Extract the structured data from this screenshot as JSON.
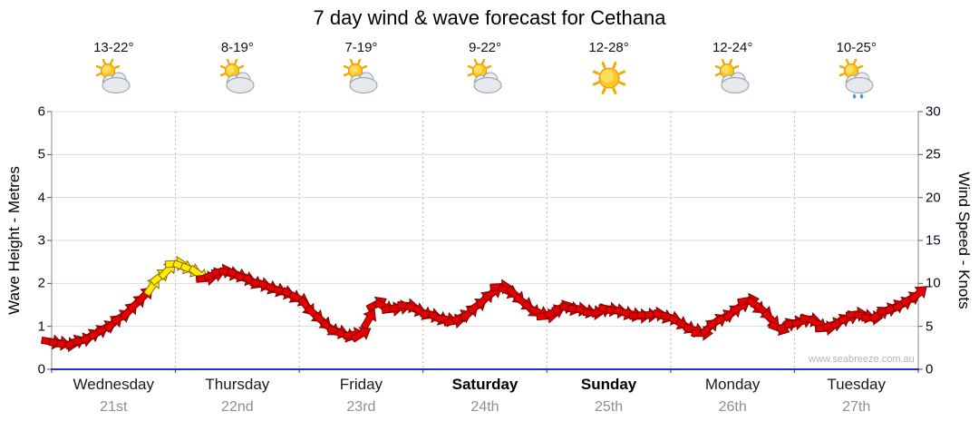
{
  "title": "7 day wind & wave forecast for Cethana",
  "watermark": "www.seabreeze.com.au",
  "axes": {
    "left_label": "Wave Height - Metres",
    "right_label": "Wind Speed - Knots",
    "left_ticks": [
      0,
      1,
      2,
      3,
      4,
      5,
      6
    ],
    "right_ticks": [
      0,
      5,
      10,
      15,
      20,
      25,
      30
    ],
    "left_max": 6,
    "right_max": 30
  },
  "days": [
    {
      "name": "Wednesday",
      "date": "21st",
      "temp": "13-22°",
      "icon": "sun-cloud",
      "bold": false
    },
    {
      "name": "Thursday",
      "date": "22nd",
      "temp": "8-19°",
      "icon": "sun-cloud",
      "bold": false
    },
    {
      "name": "Friday",
      "date": "23rd",
      "temp": "7-19°",
      "icon": "sun-cloud",
      "bold": false
    },
    {
      "name": "Saturday",
      "date": "24th",
      "temp": "9-22°",
      "icon": "sun-cloud",
      "bold": true
    },
    {
      "name": "Sunday",
      "date": "25th",
      "temp": "12-28°",
      "icon": "sun",
      "bold": true
    },
    {
      "name": "Monday",
      "date": "26th",
      "temp": "12-24°",
      "icon": "sun-cloud",
      "bold": false
    },
    {
      "name": "Tuesday",
      "date": "27th",
      "temp": "10-25°",
      "icon": "sun-cloud-rain",
      "bold": false
    }
  ],
  "chart_data": {
    "type": "line",
    "subtype": "wind-arrow-series",
    "title": "7 day wind & wave forecast for Cethana",
    "x_unit": "days (0 = start of Wednesday 21st, 7 = end of Tuesday 27th)",
    "y_unit": "knots",
    "ylim_right_knots": [
      0,
      30
    ],
    "ylim_left_metres": [
      0,
      6
    ],
    "grid": true,
    "point_format": "[time_days, wind_knots, strong_flag(1=yellow_arrow)]",
    "colors": {
      "arrow": "#e60000",
      "arrow_outline": "#7a0000",
      "arrow_strong": "#ffee00",
      "arrow_strong_outline": "#8a6a00",
      "bottom_axis": "#2233bb",
      "gridline": "#dcdcdc",
      "day_divider": "#b8b8b8"
    },
    "points": [
      [
        0.0,
        3.2
      ],
      [
        0.125,
        2.9
      ],
      [
        0.25,
        3.4
      ],
      [
        0.375,
        4.3
      ],
      [
        0.5,
        5.4
      ],
      [
        0.625,
        6.8
      ],
      [
        0.75,
        8.6
      ],
      [
        0.875,
        10.8,
        1
      ],
      [
        1.0,
        12.3,
        1
      ],
      [
        1.125,
        11.6,
        1
      ],
      [
        1.25,
        10.6
      ],
      [
        1.375,
        11.4
      ],
      [
        1.5,
        11.0
      ],
      [
        1.625,
        10.2
      ],
      [
        1.75,
        9.6
      ],
      [
        1.875,
        9.0
      ],
      [
        2.0,
        8.2
      ],
      [
        2.125,
        6.4
      ],
      [
        2.25,
        4.8
      ],
      [
        2.375,
        4.0
      ],
      [
        2.5,
        4.1
      ],
      [
        2.625,
        7.6
      ],
      [
        2.75,
        7.0
      ],
      [
        2.875,
        7.4
      ],
      [
        3.0,
        6.6
      ],
      [
        3.125,
        6.0
      ],
      [
        3.25,
        5.6
      ],
      [
        3.375,
        6.6
      ],
      [
        3.5,
        8.2
      ],
      [
        3.625,
        9.6
      ],
      [
        3.75,
        8.6
      ],
      [
        3.875,
        7.0
      ],
      [
        4.0,
        6.2
      ],
      [
        4.125,
        7.2
      ],
      [
        4.25,
        7.0
      ],
      [
        4.375,
        6.6
      ],
      [
        4.5,
        7.0
      ],
      [
        4.625,
        6.6
      ],
      [
        4.75,
        6.2
      ],
      [
        4.875,
        6.4
      ],
      [
        5.0,
        6.0
      ],
      [
        5.125,
        5.0
      ],
      [
        5.25,
        4.2
      ],
      [
        5.375,
        5.6
      ],
      [
        5.5,
        6.6
      ],
      [
        5.625,
        8.0
      ],
      [
        5.75,
        6.8
      ],
      [
        5.875,
        4.8
      ],
      [
        6.0,
        5.4
      ],
      [
        6.125,
        5.8
      ],
      [
        6.25,
        4.8
      ],
      [
        6.375,
        5.6
      ],
      [
        6.5,
        6.4
      ],
      [
        6.625,
        6.0
      ],
      [
        6.75,
        6.9
      ],
      [
        6.875,
        7.6
      ],
      [
        7.0,
        8.8
      ]
    ]
  }
}
